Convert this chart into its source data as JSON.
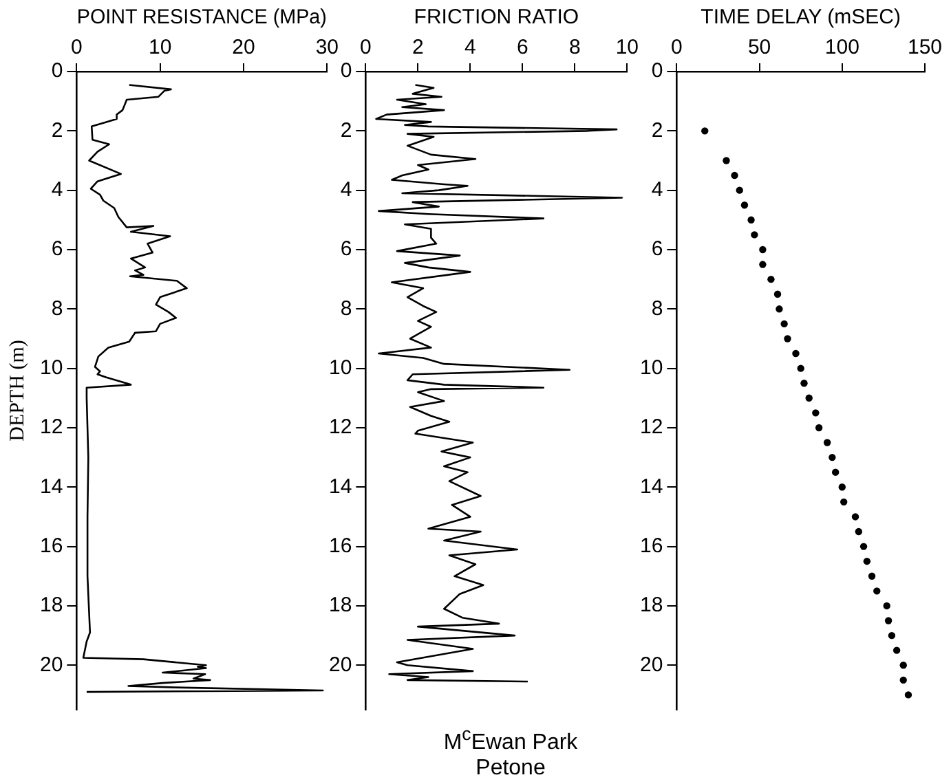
{
  "chart_data": [
    {
      "type": "line",
      "xlabel": "POINT RESISTANCE (MPa)",
      "ylabel": "DEPTH (m)",
      "xlim": [
        0,
        30
      ],
      "xticks": [
        0,
        10,
        20,
        30
      ],
      "ylim": [
        21.5,
        0
      ],
      "yticks": [
        0,
        2,
        4,
        6,
        8,
        10,
        12,
        14,
        16,
        18,
        20
      ],
      "grid": false,
      "legend": false,
      "marker": "none",
      "line_style": "solid",
      "color": "#000000",
      "x": [
        6.3,
        11.3,
        10.5,
        9.8,
        6,
        5.5,
        4.8,
        4.8,
        3,
        1.8,
        1.9,
        3.9,
        2.5,
        1.5,
        5.3,
        2.5,
        1.7,
        2.8,
        3.2,
        4.5,
        5,
        6,
        9.2,
        6.5,
        11.2,
        8.5,
        9.1,
        6.5,
        8.2,
        7,
        8,
        6.4,
        12,
        13.2,
        10,
        9.5,
        11,
        11.9,
        10,
        9.5,
        7,
        6.3,
        3.8,
        2.6,
        2.2,
        2.8,
        2.5,
        3.5,
        6.5,
        1.2,
        1.2,
        1.3,
        1.4,
        1.3,
        1.3,
        1.6,
        1.2,
        0.8,
        8,
        15.5,
        14.5,
        15.5,
        10.3,
        15.4,
        14,
        16,
        10.3,
        6.2,
        12,
        29.5,
        1.2
      ],
      "values": [
        0.45,
        0.6,
        0.65,
        0.85,
        0.95,
        1.3,
        1.45,
        1.6,
        1.75,
        1.85,
        2.3,
        2.45,
        2.7,
        3,
        3.45,
        3.7,
        3.95,
        4.15,
        4.35,
        4.6,
        4.9,
        5.25,
        5.2,
        5.4,
        5.55,
        5.8,
        6.1,
        6.3,
        6.6,
        6.7,
        6.85,
        6.9,
        7.05,
        7.3,
        7.6,
        7.85,
        8.1,
        8.3,
        8.5,
        8.75,
        8.8,
        9.1,
        9.3,
        9.6,
        9.95,
        10.1,
        10.2,
        10.3,
        10.55,
        10.65,
        11,
        12,
        13,
        15,
        17,
        18.9,
        19.2,
        19.75,
        19.8,
        20,
        20.05,
        20.1,
        20.25,
        20.3,
        20.45,
        20.5,
        20.6,
        20.7,
        20.75,
        20.85,
        20.9
      ]
    },
    {
      "type": "line",
      "xlabel": "FRICTION RATIO",
      "xlim": [
        0,
        10
      ],
      "xticks": [
        0,
        2,
        4,
        6,
        8,
        10
      ],
      "ylim": [
        21.5,
        0
      ],
      "yticks": [
        0,
        2,
        4,
        6,
        8,
        10,
        12,
        14,
        16,
        18,
        20
      ],
      "grid": false,
      "legend": false,
      "marker": "none",
      "line_style": "solid",
      "color": "#000000",
      "annotations": [
        "M$^{c}$Ewan Park",
        "Petone"
      ],
      "x": [
        1.9,
        2.6,
        1.8,
        2.9,
        1.2,
        2.3,
        1.4,
        3,
        0.8,
        0.4,
        2.5,
        1.5,
        2.4,
        9.6,
        8.5,
        1.6,
        2.6,
        1.6,
        2.5,
        4.2,
        2,
        2.4,
        1.4,
        1,
        3,
        3.9,
        2.8,
        1.4,
        9.8,
        1.8,
        2.8,
        0.5,
        2.4,
        6.8,
        1.5,
        2.5,
        2.5,
        2.7,
        1.2,
        3.6,
        1.5,
        2.4,
        4,
        1,
        2.2,
        1.6,
        2.2,
        2.7,
        2,
        2.5,
        1.7,
        2.5,
        0.5,
        2.2,
        3,
        7.8,
        1.8,
        1.6,
        3,
        6.8,
        2.5,
        2,
        3,
        1.7,
        2.5,
        3.2,
        2,
        1.9,
        4.1,
        2.9,
        4,
        3,
        3.9,
        3.2,
        4.4,
        3.3,
        4,
        2.4,
        4.4,
        3,
        5.8,
        3.2,
        4.2,
        3.4,
        4.5,
        3.6,
        3,
        3.7,
        5.1,
        2,
        5.7,
        1.6,
        4.1,
        1.2,
        1.6,
        4.1,
        0.9,
        2.4,
        1.6,
        6.2
      ],
      "values": [
        0.45,
        0.55,
        0.75,
        0.85,
        0.95,
        1.1,
        1.2,
        1.3,
        1.45,
        1.6,
        1.7,
        1.8,
        1.85,
        1.95,
        2,
        2.1,
        2.2,
        2.5,
        2.8,
        2.95,
        3.15,
        3.3,
        3.5,
        3.65,
        3.8,
        3.85,
        4,
        4.1,
        4.25,
        4.4,
        4.55,
        4.7,
        4.8,
        4.95,
        5.15,
        5.3,
        5.6,
        5.8,
        6.05,
        6.2,
        6.45,
        6.6,
        6.75,
        7.1,
        7.3,
        7.6,
        7.9,
        8.1,
        8.4,
        8.6,
        9,
        9.3,
        9.5,
        9.65,
        9.85,
        10.05,
        10.2,
        10.4,
        10.55,
        10.65,
        10.7,
        10.8,
        11.1,
        11.3,
        11.6,
        11.8,
        12.1,
        12.2,
        12.5,
        12.8,
        13,
        13.3,
        13.5,
        13.8,
        14.3,
        14.6,
        15,
        15.4,
        15.5,
        15.8,
        16.1,
        16.3,
        16.6,
        17,
        17.3,
        17.6,
        18.1,
        18.4,
        18.6,
        18.7,
        19,
        19.15,
        19.45,
        19.9,
        20,
        20.2,
        20.3,
        20.4,
        20.5,
        20.55
      ]
    },
    {
      "type": "scatter",
      "xlabel": "TIME DELAY (mSEC)",
      "xlim": [
        0,
        150
      ],
      "xticks": [
        0,
        50,
        100,
        150
      ],
      "ylim": [
        21.5,
        0
      ],
      "yticks": [
        0,
        2,
        4,
        6,
        8,
        10,
        12,
        14,
        16,
        18,
        20
      ],
      "grid": false,
      "legend": false,
      "marker": "circle",
      "color": "#000000",
      "x": [
        17,
        30,
        35,
        38,
        41,
        45,
        47,
        52,
        52,
        57,
        61,
        62,
        65,
        67,
        72,
        75,
        77,
        80,
        84,
        86,
        91,
        94,
        96,
        100,
        101,
        108,
        110,
        113,
        115,
        118,
        121,
        127,
        128,
        130,
        133,
        137,
        137,
        140
      ],
      "values": [
        2,
        3,
        3.5,
        4,
        4.5,
        5,
        5.5,
        6,
        6.5,
        7,
        7.5,
        8,
        8.5,
        9,
        9.5,
        10,
        10.5,
        11,
        11.5,
        12,
        12.5,
        13,
        13.5,
        14,
        14.5,
        15,
        15.5,
        16,
        16.5,
        17,
        17.5,
        18,
        18.5,
        19,
        19.5,
        20,
        20.5,
        21
      ]
    }
  ]
}
